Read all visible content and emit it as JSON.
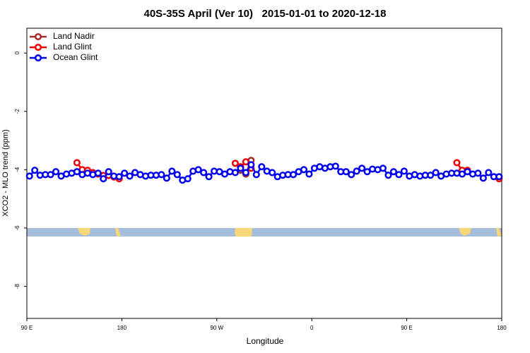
{
  "chart_data": {
    "type": "line",
    "title": "40S-35S April (Ver 10)   2015-01-01 to 2020-12-18",
    "x_label": "Longitude",
    "y_label": "XCO2 - MLO trend (ppm)",
    "legend": "top-left",
    "xlim": [
      90,
      540
    ],
    "ylim": [
      0.85,
      -9.1
    ],
    "xticks": [
      {
        "value": 90,
        "label": "90 E"
      },
      180,
      {
        "value": 270,
        "label": "90 W"
      },
      {
        "value": 360,
        "label": "0"
      },
      {
        "value": 450,
        "label": "90 E"
      },
      {
        "value": 540,
        "label": "180"
      }
    ],
    "yticks": [
      0,
      -2,
      -4,
      -6,
      -8
    ],
    "x": [
      92.5,
      97.5,
      102.5,
      107.5,
      112.5,
      117.5,
      122.5,
      127.5,
      132.5,
      137.5,
      142.5,
      147.5,
      152.5,
      157.5,
      162.5,
      167.5,
      172.5,
      177.5,
      182.5,
      187.5,
      192.5,
      197.5,
      202.5,
      207.5,
      212.5,
      217.5,
      222.5,
      227.5,
      232.5,
      237.5,
      242.5,
      247.5,
      252.5,
      257.5,
      262.5,
      267.5,
      272.5,
      277.5,
      282.5,
      287.5,
      292.5,
      297.5,
      302.5,
      307.5,
      312.5,
      317.5,
      322.5,
      327.5,
      332.5,
      337.5,
      342.5,
      347.5,
      352.5,
      357.5,
      362.5,
      367.5,
      372.5,
      377.5,
      382.5,
      387.5,
      392.5,
      397.5,
      402.5,
      407.5,
      412.5,
      417.5,
      422.5,
      427.5,
      432.5,
      437.5,
      442.5,
      447.5,
      452.5,
      457.5,
      462.5,
      467.5,
      472.5,
      477.5,
      482.5,
      487.5,
      492.5,
      497.5,
      502.5,
      507.5,
      512.5,
      517.5,
      522.5,
      527.5,
      532.5,
      537.5
    ],
    "series": [
      {
        "name": "Land Nadir",
        "color": "#a52a2a",
        "values": [
          null,
          null,
          null,
          null,
          null,
          null,
          null,
          null,
          null,
          null,
          null,
          null,
          null,
          null,
          null,
          null,
          null,
          null,
          null,
          null,
          null,
          null,
          null,
          null,
          null,
          null,
          null,
          null,
          null,
          null,
          null,
          null,
          null,
          null,
          null,
          null,
          null,
          null,
          null,
          null,
          -4.02,
          -4.15,
          -3.68,
          null,
          null,
          null,
          null,
          null,
          null,
          null,
          null,
          null,
          null,
          null,
          null,
          null,
          null,
          null,
          null,
          null,
          null,
          null,
          null,
          null,
          null,
          null,
          null,
          null,
          null,
          null,
          null,
          null,
          null,
          null,
          null,
          null,
          null,
          null,
          null,
          null,
          null,
          null,
          null,
          null,
          null,
          null,
          null,
          null,
          null,
          null
        ]
      },
      {
        "name": "Land Glint",
        "color": "#ee0000",
        "values": [
          null,
          null,
          null,
          null,
          null,
          null,
          null,
          null,
          null,
          -3.76,
          -4.0,
          -4.02,
          -4.1,
          -4.15,
          -4.2,
          -4.2,
          -4.25,
          -4.31,
          null,
          null,
          null,
          null,
          null,
          null,
          null,
          null,
          null,
          null,
          null,
          null,
          null,
          null,
          null,
          null,
          null,
          null,
          null,
          null,
          null,
          -3.78,
          -3.9,
          -3.73,
          -3.95,
          null,
          null,
          null,
          null,
          null,
          null,
          null,
          null,
          null,
          null,
          null,
          null,
          null,
          null,
          null,
          null,
          null,
          null,
          null,
          null,
          null,
          null,
          null,
          null,
          null,
          null,
          null,
          null,
          null,
          null,
          null,
          null,
          null,
          null,
          null,
          null,
          null,
          null,
          -3.76,
          -4.02,
          -4.02,
          null,
          null,
          null,
          null,
          null,
          -4.31
        ]
      },
      {
        "name": "Ocean Glint",
        "color": "#0000ee",
        "values": [
          -4.22,
          -4.02,
          -4.19,
          -4.17,
          -4.17,
          -4.07,
          -4.22,
          -4.15,
          -4.12,
          -4.07,
          -4.17,
          -4.12,
          -4.17,
          -4.12,
          -4.31,
          -4.07,
          -4.22,
          -4.24,
          -4.12,
          -4.22,
          -4.1,
          -4.17,
          -4.22,
          -4.19,
          -4.19,
          -4.17,
          -4.29,
          -4.05,
          -4.17,
          -4.36,
          -4.31,
          -4.05,
          -4.0,
          -4.1,
          -4.24,
          -4.05,
          -4.07,
          -4.15,
          -4.07,
          -4.1,
          -3.95,
          -4.1,
          -3.83,
          -4.17,
          -3.9,
          -4.05,
          -4.1,
          -4.24,
          -4.19,
          -4.17,
          -4.17,
          -4.07,
          -4.0,
          -4.15,
          -3.95,
          -3.9,
          -3.95,
          -3.9,
          -3.88,
          -4.07,
          -4.07,
          -4.17,
          -4.05,
          -3.95,
          -4.07,
          -3.98,
          -4.0,
          -3.95,
          -4.19,
          -4.07,
          -4.17,
          -4.05,
          -4.22,
          -4.17,
          -4.22,
          -4.19,
          -4.19,
          -4.1,
          -4.22,
          -4.15,
          -4.12,
          -4.12,
          -4.15,
          -4.07,
          -4.15,
          -4.12,
          -4.29,
          -4.1,
          -4.24,
          -4.24
        ]
      }
    ]
  }
}
